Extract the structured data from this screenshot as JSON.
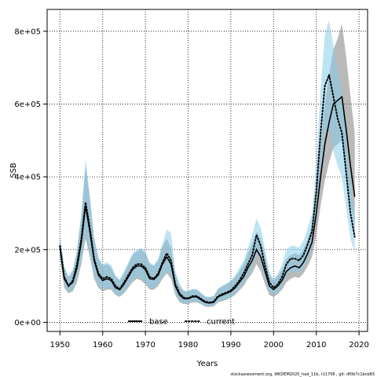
{
  "chart_data": {
    "type": "line",
    "xlabel": "Years",
    "ylabel": "SSB",
    "xlim": [
      1947,
      2022
    ],
    "ylim": [
      -25000,
      860000
    ],
    "x_ticks": [
      1950,
      1960,
      1970,
      1980,
      1990,
      2000,
      2010,
      2020
    ],
    "x_tick_labels": [
      "1950",
      "1960",
      "1970",
      "1980",
      "1990",
      "2000",
      "2010",
      "2020"
    ],
    "y_ticks": [
      0,
      200000,
      400000,
      600000,
      800000
    ],
    "y_tick_labels": [
      "0e+00",
      "2e+05",
      "4e+05",
      "6e+05",
      "8e+05"
    ],
    "grid": true,
    "legend_position": "bottom-center",
    "footer": "stockassessment.org, WKDEM2020_had_11b, r11706 , git: df0b7c1bcb83",
    "series": [
      {
        "name": "base",
        "color": "#000000",
        "band_color": "#808080",
        "line_style": "solid",
        "x": [
          1950,
          1951,
          1952,
          1953,
          1954,
          1955,
          1956,
          1957,
          1958,
          1959,
          1960,
          1961,
          1962,
          1963,
          1964,
          1965,
          1966,
          1967,
          1968,
          1969,
          1970,
          1971,
          1972,
          1973,
          1974,
          1975,
          1976,
          1977,
          1978,
          1979,
          1980,
          1981,
          1982,
          1983,
          1984,
          1985,
          1986,
          1987,
          1988,
          1989,
          1990,
          1991,
          1992,
          1993,
          1994,
          1995,
          1996,
          1997,
          1998,
          1999,
          2000,
          2001,
          2002,
          2003,
          2004,
          2005,
          2006,
          2007,
          2008,
          2009,
          2010,
          2011,
          2012,
          2013,
          2014,
          2015,
          2016,
          2017,
          2018,
          2019
        ],
        "values": [
          205000,
          120000,
          100000,
          110000,
          150000,
          220000,
          320000,
          250000,
          170000,
          130000,
          115000,
          120000,
          115000,
          95000,
          90000,
          105000,
          125000,
          145000,
          155000,
          155000,
          145000,
          120000,
          118000,
          130000,
          160000,
          180000,
          160000,
          100000,
          75000,
          65000,
          65000,
          70000,
          70000,
          62000,
          55000,
          53000,
          55000,
          70000,
          75000,
          80000,
          85000,
          95000,
          110000,
          125000,
          150000,
          170000,
          200000,
          180000,
          140000,
          100000,
          90000,
          100000,
          115000,
          140000,
          150000,
          155000,
          150000,
          165000,
          190000,
          220000,
          300000,
          400000,
          490000,
          550000,
          600000,
          610000,
          620000,
          530000,
          430000,
          345000
        ],
        "lower": [
          180000,
          95000,
          80000,
          85000,
          110000,
          160000,
          230000,
          180000,
          120000,
          95000,
          85000,
          90000,
          90000,
          75000,
          70000,
          80000,
          95000,
          110000,
          120000,
          115000,
          105000,
          90000,
          90000,
          100000,
          120000,
          135000,
          120000,
          75000,
          55000,
          50000,
          50000,
          55000,
          55000,
          50000,
          43000,
          42000,
          44000,
          55000,
          58000,
          62000,
          68000,
          75000,
          88000,
          100000,
          120000,
          135000,
          160000,
          140000,
          105000,
          75000,
          70000,
          78000,
          90000,
          110000,
          120000,
          125000,
          122000,
          135000,
          155000,
          180000,
          240000,
          320000,
          390000,
          440000,
          480000,
          490000,
          500000,
          420000,
          330000,
          250000
        ],
        "upper": [
          235000,
          150000,
          125000,
          140000,
          195000,
          290000,
          430000,
          340000,
          230000,
          175000,
          155000,
          160000,
          150000,
          125000,
          115000,
          135000,
          160000,
          185000,
          195000,
          200000,
          190000,
          160000,
          155000,
          170000,
          210000,
          230000,
          205000,
          135000,
          100000,
          85000,
          85000,
          90000,
          90000,
          80000,
          70000,
          68000,
          72000,
          92000,
          100000,
          105000,
          112000,
          125000,
          140000,
          160000,
          190000,
          215000,
          250000,
          230000,
          185000,
          130000,
          115000,
          128000,
          145000,
          175000,
          185000,
          190000,
          185000,
          200000,
          230000,
          270000,
          370000,
          490000,
          600000,
          680000,
          750000,
          780000,
          820000,
          730000,
          620000,
          520000
        ]
      },
      {
        "name": "current",
        "color": "#000000",
        "band_color": "#87ceeb",
        "line_style": "dotted",
        "x": [
          1950,
          1951,
          1952,
          1953,
          1954,
          1955,
          1956,
          1957,
          1958,
          1959,
          1960,
          1961,
          1962,
          1963,
          1964,
          1965,
          1966,
          1967,
          1968,
          1969,
          1970,
          1971,
          1972,
          1973,
          1974,
          1975,
          1976,
          1977,
          1978,
          1979,
          1980,
          1981,
          1982,
          1983,
          1984,
          1985,
          1986,
          1987,
          1988,
          1989,
          1990,
          1991,
          1992,
          1993,
          1994,
          1995,
          1996,
          1997,
          1998,
          1999,
          2000,
          2001,
          2002,
          2003,
          2004,
          2005,
          2006,
          2007,
          2008,
          2009,
          2010,
          2011,
          2012,
          2013,
          2014,
          2015,
          2016,
          2017,
          2018,
          2019
        ],
        "values": [
          210000,
          125000,
          100000,
          115000,
          160000,
          230000,
          330000,
          260000,
          175000,
          135000,
          120000,
          125000,
          120000,
          100000,
          92000,
          110000,
          130000,
          150000,
          160000,
          160000,
          150000,
          125000,
          120000,
          135000,
          165000,
          190000,
          170000,
          105000,
          80000,
          68000,
          66000,
          72000,
          72000,
          65000,
          57000,
          55000,
          57000,
          72000,
          78000,
          82000,
          88000,
          100000,
          115000,
          135000,
          160000,
          185000,
          240000,
          210000,
          155000,
          110000,
          95000,
          105000,
          125000,
          160000,
          175000,
          175000,
          170000,
          185000,
          215000,
          250000,
          360000,
          520000,
          650000,
          680000,
          620000,
          560000,
          520000,
          410000,
          300000,
          235000
        ],
        "lower": [
          185000,
          100000,
          82000,
          92000,
          120000,
          170000,
          240000,
          190000,
          125000,
          100000,
          90000,
          95000,
          92000,
          78000,
          72000,
          85000,
          100000,
          115000,
          125000,
          120000,
          110000,
          95000,
          92000,
          105000,
          125000,
          140000,
          128000,
          80000,
          60000,
          52000,
          52000,
          57000,
          57000,
          52000,
          45000,
          44000,
          46000,
          57000,
          60000,
          64000,
          70000,
          80000,
          92000,
          108000,
          128000,
          148000,
          195000,
          165000,
          118000,
          82000,
          75000,
          82000,
          98000,
          125000,
          140000,
          140000,
          135000,
          150000,
          175000,
          205000,
          290000,
          420000,
          520000,
          540000,
          470000,
          430000,
          400000,
          310000,
          230000,
          190000
        ],
        "upper": [
          240000,
          155000,
          125000,
          145000,
          205000,
          300000,
          450000,
          350000,
          235000,
          180000,
          160000,
          165000,
          158000,
          130000,
          118000,
          140000,
          165000,
          190000,
          200000,
          205000,
          195000,
          165000,
          158000,
          175000,
          215000,
          255000,
          245000,
          140000,
          105000,
          88000,
          86000,
          92000,
          92000,
          82000,
          72000,
          70000,
          72000,
          92000,
          100000,
          108000,
          115000,
          130000,
          150000,
          170000,
          205000,
          240000,
          285000,
          260000,
          200000,
          140000,
          120000,
          135000,
          160000,
          200000,
          210000,
          210000,
          205000,
          225000,
          260000,
          300000,
          440000,
          640000,
          790000,
          830000,
          760000,
          690000,
          640000,
          520000,
          390000,
          290000
        ]
      }
    ]
  }
}
